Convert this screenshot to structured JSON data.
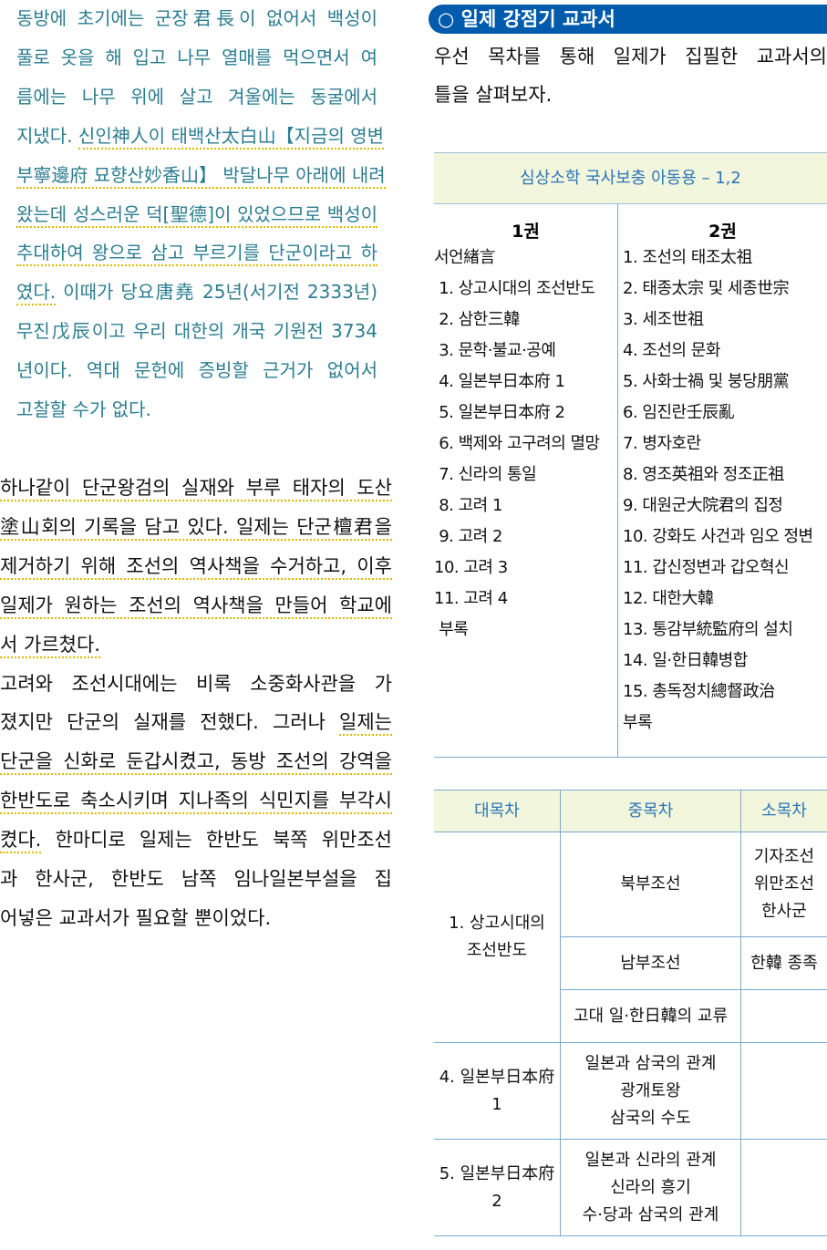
{
  "quote": {
    "lines": [
      [
        {
          "t": "동방에 초기에는 군장君長이 없어서 백성이",
          "u": false
        }
      ],
      [
        {
          "t": "풀로 옷을 해 입고 나무 열매를 먹으면서 여",
          "u": false
        }
      ],
      [
        {
          "t": "름에는 나무 위에 살고 겨울에는 동굴에서",
          "u": false
        }
      ],
      [
        {
          "t": "지냈다. ",
          "u": false
        },
        {
          "t": "신인神人이 태백산太白山【지금의 영변",
          "u": true
        }
      ],
      [
        {
          "t": "부寧邊府 묘향산妙香山】 박달나무 아래에 내려",
          "u": true
        }
      ],
      [
        {
          "t": "왔는데 성스러운 덕[聖德]이 있었으므로 백성이",
          "u": true
        }
      ],
      [
        {
          "t": "추대하여 왕으로 삼고 부르기를 단군이라고 하",
          "u": true
        }
      ],
      [
        {
          "t": "였다.",
          "u": true
        },
        {
          "t": " 이때가 당요唐堯 25년(서기전 2333년)",
          "u": false
        }
      ],
      [
        {
          "t": "무진戊辰이고 우리 대한의 개국 기원전 3734",
          "u": false
        }
      ],
      [
        {
          "t": "년이다. 역대 문헌에 증빙할 근거가 없어서",
          "u": false
        }
      ],
      [
        {
          "t": "고찰할 수가 없다.",
          "u": false
        }
      ]
    ]
  },
  "body": {
    "lines": [
      [
        {
          "t": "하나같이 단군왕검의 실재와 부루 태자의 도산",
          "u": true
        }
      ],
      [
        {
          "t": "塗山회의 기록을 담고 있다. 일제는 단군檀君을",
          "u": true
        }
      ],
      [
        {
          "t": "제거하기 위해 조선의 역사책을 수거하고, 이후",
          "u": true
        }
      ],
      [
        {
          "t": "일제가 원하는 조선의 역사책을 만들어 학교에",
          "u": true
        }
      ],
      [
        {
          "t": "서 가르쳤다.",
          "u": true
        }
      ],
      [
        {
          "t": "고려와 조선시대에는 비록 소중화사관을 가",
          "u": false
        }
      ],
      [
        {
          "t": "졌지만 단군의 실재를 전했다. 그러나 ",
          "u": false
        },
        {
          "t": "일제는",
          "u": true
        }
      ],
      [
        {
          "t": "단군을 신화로 둔갑시켰고, 동방 조선의 강역을",
          "u": true
        }
      ],
      [
        {
          "t": "한반도로 축소시키며 지나족의 식민지를 부각시",
          "u": true
        }
      ],
      [
        {
          "t": "켰다.",
          "u": true
        },
        {
          "t": " 한마디로 일제는 한반도 북쪽 위만조선",
          "u": false
        }
      ],
      [
        {
          "t": "과 한사군, 한반도 남쪽 임나일본부설을 집",
          "u": false
        }
      ],
      [
        {
          "t": "어넣은 교과서가 필요할 뿐이었다.",
          "u": false
        }
      ]
    ]
  },
  "section": {
    "title": "○ 일제 강점기 교과서",
    "intro_lines": [
      "우선 목차를 통해 일제가 집필한 교과서의",
      "틀을 살펴보자."
    ]
  },
  "toc": {
    "title": "심상소학 국사보충 아동용 – 1,2",
    "vol1": {
      "heading": "1권",
      "items": [
        "서언緖言",
        " 1. 상고시대의 조선반도",
        " 2. 삼한三韓",
        " 3. 문학·불교·공예",
        " 4. 일본부日本府 1",
        " 5. 일본부日本府 2",
        " 6. 백제와 고구려의 멸망",
        " 7. 신라의 통일",
        " 8. 고려 1",
        " 9. 고려 2",
        "10. 고려 3",
        "11. 고려 4",
        " 부록"
      ]
    },
    "vol2": {
      "heading": "2권",
      "items": [
        "1. 조선의 태조太祖",
        "2. 태종太宗 및 세종世宗",
        "3. 세조世祖",
        "4. 조선의 문화",
        "5. 사화士禍 및 붕당朋黨",
        "6. 임진란壬辰亂",
        "7. 병자호란",
        "8. 영조英祖와 정조正祖",
        "9. 대원군大院君의 집정",
        "10. 강화도 사건과 임오 정변",
        "11. 갑신정변과 갑오혁신",
        "12. 대한大韓",
        "13. 통감부統監府의 설치",
        "14. 일·한日韓병합",
        "15. 총독정치總督政治",
        "부록"
      ]
    }
  },
  "outline": {
    "headers": [
      "대목차",
      "중목차",
      "소목차"
    ],
    "r1_major": [
      "1. 상고시대의",
      "조선반도"
    ],
    "r1_mid": "북부조선",
    "r1_minor": [
      "기자조선",
      "위만조선",
      "한사군"
    ],
    "r2_mid": "남부조선",
    "r2_minor": "한韓 종족",
    "r3_mid": "고대 일·한日韓의 교류",
    "r4_major": [
      "4. 일본부日本府",
      "1"
    ],
    "r4_mid": [
      "일본과 삼국의 관계",
      "광개토왕",
      "삼국의 수도"
    ],
    "r5_major": [
      "5. 일본부日本府",
      "2"
    ],
    "r5_mid": [
      "일본과 신라의 관계",
      "신라의 흥기",
      "수·당과 삼국의 관계"
    ]
  },
  "colors": {
    "accent": "#005bac",
    "quote_text": "#2b7d90",
    "header_bg": "#f2f6dc",
    "underline": "#e0b800"
  }
}
